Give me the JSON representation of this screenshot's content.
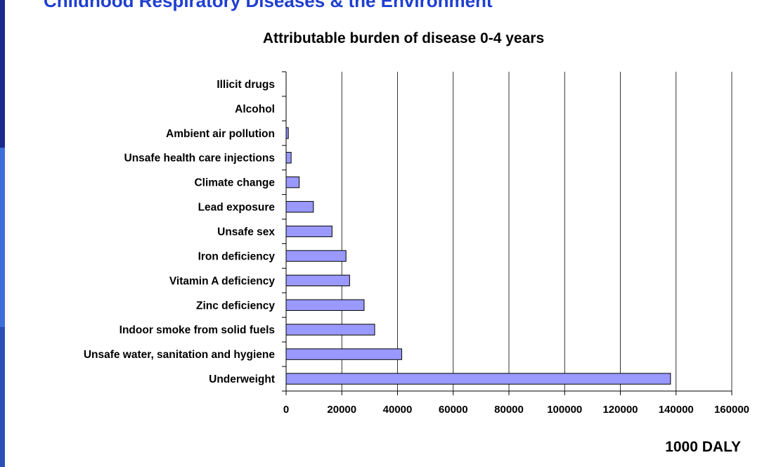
{
  "slide": {
    "header_title": "Childhood Respiratory Diseases & the Environment",
    "unit_label": "1000 DALY"
  },
  "colors": {
    "bar_fill": "#9999ff",
    "bar_stroke": "#000000",
    "title_blue": "#1f3fd0"
  },
  "chart_data": {
    "type": "bar",
    "orientation": "horizontal",
    "title": "Attributable burden of disease 0-4 years",
    "xlabel": "1000 DALY",
    "ylabel": "",
    "xlim": [
      0,
      160000
    ],
    "xticks": [
      0,
      20000,
      40000,
      60000,
      80000,
      100000,
      120000,
      140000,
      160000
    ],
    "grid": "vertical",
    "categories": [
      "Illicit drugs",
      "Alcohol",
      "Ambient air pollution",
      "Unsafe health care injections",
      "Climate change",
      "Lead exposure",
      "Unsafe sex",
      "Iron deficiency",
      "Vitamin A deficiency",
      "Zinc deficiency",
      "Indoor smoke from solid fuels",
      "Unsafe water, sanitation and hygiene",
      "Underweight"
    ],
    "values": [
      0,
      0,
      800,
      1800,
      4700,
      9800,
      16500,
      21500,
      22800,
      28000,
      31800,
      41500,
      138000
    ]
  }
}
